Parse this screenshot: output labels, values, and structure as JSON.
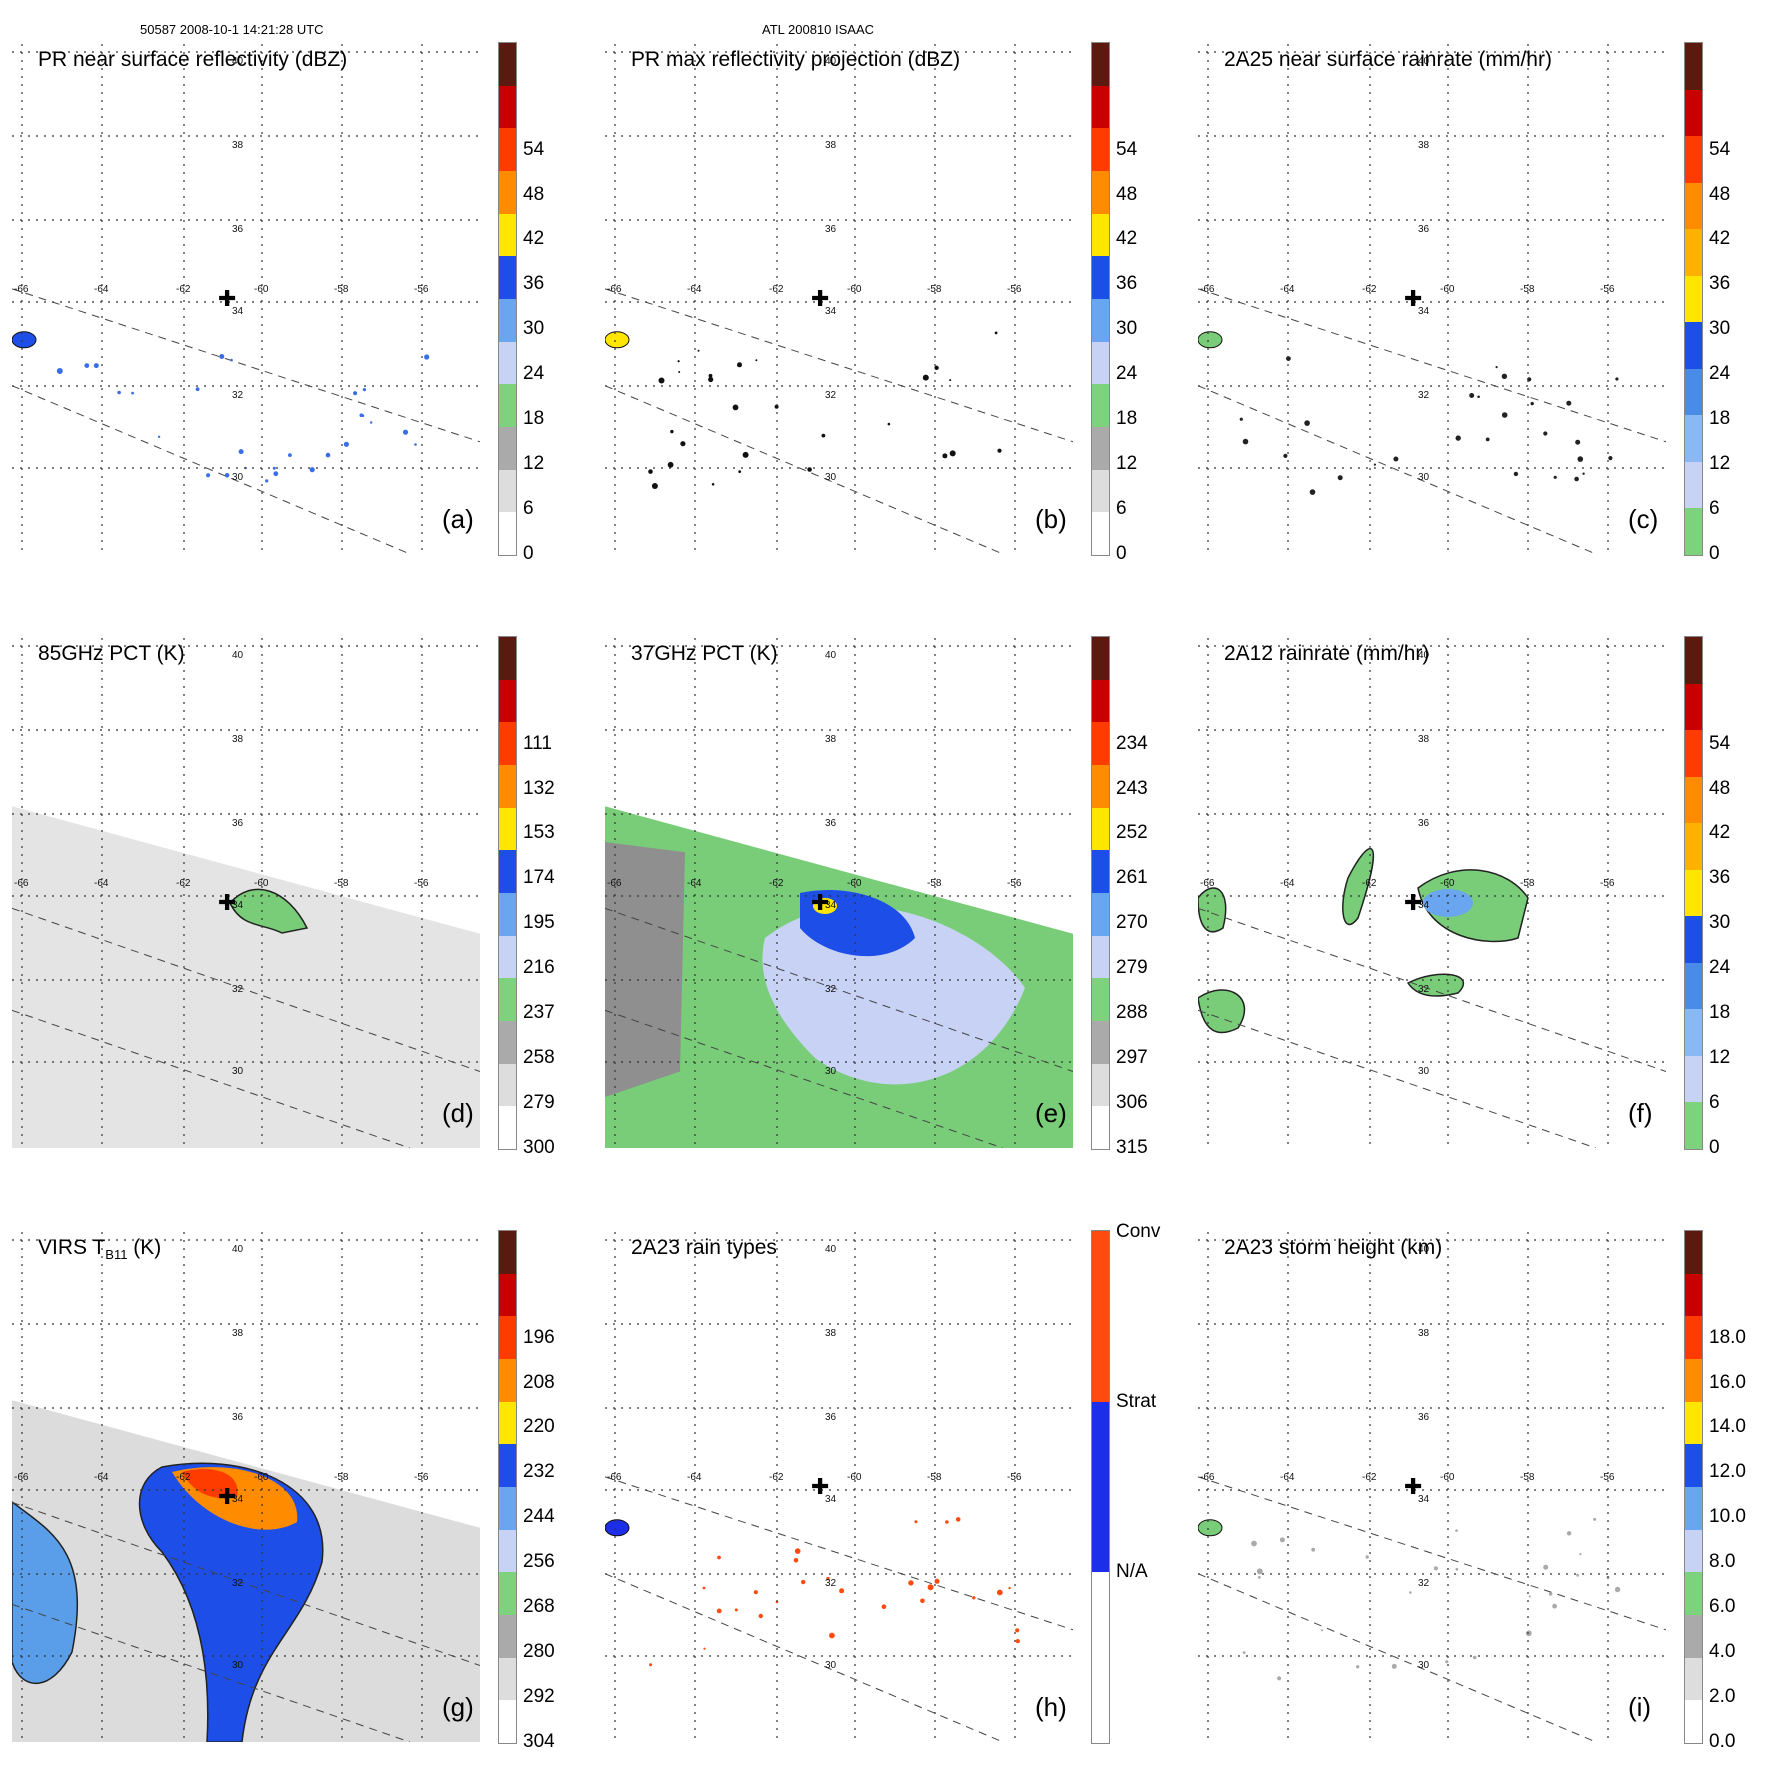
{
  "header": {
    "left": "50587 2008-10-1 14:21:28 UTC",
    "center": "ATL 200810 ISAAC"
  },
  "panels": [
    {
      "id": "a",
      "title": "PR near surface reflectivity (dBZ)",
      "label": "(a)",
      "ticks": [
        "0",
        "6",
        "12",
        "18",
        "24",
        "30",
        "36",
        "42",
        "48",
        "54"
      ],
      "colors": [
        "#ffffff",
        "#dddddd",
        "#aaaaaa",
        "#7ed27e",
        "#c8d2f5",
        "#6aa6ef",
        "#1d4ee8",
        "#ffe600",
        "#ff8c00",
        "#ff3c00",
        "#c80000",
        "#5a1a10"
      ],
      "lat_labels": [
        "40",
        "38",
        "36",
        "34",
        "32",
        "30"
      ],
      "lon_labels": [
        "-66",
        "-64",
        "-62",
        "-60",
        "-58",
        "-56"
      ],
      "swath": "narrow"
    },
    {
      "id": "b",
      "title": "PR max reflectivity projection (dBZ)",
      "label": "(b)",
      "ticks": [
        "0",
        "6",
        "12",
        "18",
        "24",
        "30",
        "36",
        "42",
        "48",
        "54"
      ],
      "colors": [
        "#ffffff",
        "#dddddd",
        "#aaaaaa",
        "#7ed27e",
        "#c8d2f5",
        "#6aa6ef",
        "#1d4ee8",
        "#ffe600",
        "#ff8c00",
        "#ff3c00",
        "#c80000",
        "#5a1a10"
      ],
      "lat_labels": [
        "40",
        "38",
        "36",
        "34",
        "32",
        "30"
      ],
      "lon_labels": [
        "-66",
        "-64",
        "-62",
        "-60",
        "-58",
        "-56"
      ],
      "swath": "narrow"
    },
    {
      "id": "c",
      "title": "2A25 near surface rainrate (mm/hr)",
      "label": "(c)",
      "ticks": [
        "0",
        "6",
        "12",
        "18",
        "24",
        "30",
        "36",
        "42",
        "48",
        "54"
      ],
      "colors": [
        "#7ed27e",
        "#c8d2f5",
        "#8ab8f2",
        "#4a8ae8",
        "#1d4ee8",
        "#ffe600",
        "#ffb000",
        "#ff8c00",
        "#ff3c00",
        "#c80000",
        "#5a1a10"
      ],
      "lat_labels": [
        "40",
        "38",
        "36",
        "34",
        "32",
        "30"
      ],
      "lon_labels": [
        "-66",
        "-64",
        "-62",
        "-60",
        "-58",
        "-56"
      ],
      "swath": "narrow"
    },
    {
      "id": "d",
      "title": "85GHz PCT (K)",
      "label": "(d)",
      "ticks": [
        "300",
        "279",
        "258",
        "237",
        "216",
        "195",
        "174",
        "153",
        "132",
        "111"
      ],
      "colors": [
        "#ffffff",
        "#dddddd",
        "#aaaaaa",
        "#7ed27e",
        "#c8d2f5",
        "#6aa6ef",
        "#1d4ee8",
        "#ffe600",
        "#ff8c00",
        "#ff3c00",
        "#c80000",
        "#5a1a10"
      ],
      "lat_labels": [
        "40",
        "38",
        "36",
        "34",
        "32",
        "30"
      ],
      "lon_labels": [
        "-66",
        "-64",
        "-62",
        "-60",
        "-58",
        "-56"
      ],
      "swath": "wide"
    },
    {
      "id": "e",
      "title": "37GHz PCT (K)",
      "label": "(e)",
      "ticks": [
        "315",
        "306",
        "297",
        "288",
        "279",
        "270",
        "261",
        "252",
        "243",
        "234"
      ],
      "colors": [
        "#ffffff",
        "#dddddd",
        "#aaaaaa",
        "#7ed27e",
        "#c8d2f5",
        "#6aa6ef",
        "#1d4ee8",
        "#ffe600",
        "#ff8c00",
        "#ff3c00",
        "#c80000",
        "#5a1a10"
      ],
      "lat_labels": [
        "40",
        "38",
        "36",
        "34",
        "32",
        "30"
      ],
      "lon_labels": [
        "-66",
        "-64",
        "-62",
        "-60",
        "-58",
        "-56"
      ],
      "swath": "wide"
    },
    {
      "id": "f",
      "title": "2A12 rainrate (mm/hr)",
      "label": "(f)",
      "ticks": [
        "0",
        "6",
        "12",
        "18",
        "24",
        "30",
        "36",
        "42",
        "48",
        "54"
      ],
      "colors": [
        "#7ed27e",
        "#c8d2f5",
        "#8ab8f2",
        "#4a8ae8",
        "#1d4ee8",
        "#ffe600",
        "#ffb000",
        "#ff8c00",
        "#ff3c00",
        "#c80000",
        "#5a1a10"
      ],
      "lat_labels": [
        "40",
        "38",
        "36",
        "34",
        "32",
        "30"
      ],
      "lon_labels": [
        "-66",
        "-64",
        "-62",
        "-60",
        "-58",
        "-56"
      ],
      "swath": "wide"
    },
    {
      "id": "g",
      "title": "VIRS T",
      "title_sub": "B11",
      "title_suffix": " (K)",
      "label": "(g)",
      "ticks": [
        "304",
        "292",
        "280",
        "268",
        "256",
        "244",
        "232",
        "220",
        "208",
        "196"
      ],
      "colors": [
        "#ffffff",
        "#dddddd",
        "#aaaaaa",
        "#7ed27e",
        "#c8d2f5",
        "#6aa6ef",
        "#1d4ee8",
        "#ffe600",
        "#ff8c00",
        "#ff3c00",
        "#c80000",
        "#5a1a10"
      ],
      "lat_labels": [
        "40",
        "38",
        "36",
        "34",
        "32",
        "30"
      ],
      "lon_labels": [
        "-66",
        "-64",
        "-62",
        "-60",
        "-58",
        "-56"
      ],
      "swath": "wide"
    },
    {
      "id": "h",
      "title": "2A23 rain types",
      "label": "(h)",
      "ticks": [
        "N/A",
        "Strat",
        "Conv"
      ],
      "colors": [
        "#ffffff",
        "#1d2ee8",
        "#ff4a10"
      ],
      "lat_labels": [
        "40",
        "38",
        "36",
        "34",
        "32",
        "30"
      ],
      "lon_labels": [
        "-66",
        "-64",
        "-62",
        "-60",
        "-58",
        "-56"
      ],
      "swath": "narrow"
    },
    {
      "id": "i",
      "title": "2A23 storm height (km)",
      "label": "(i)",
      "ticks": [
        "0.0",
        "2.0",
        "4.0",
        "6.0",
        "8.0",
        "10.0",
        "12.0",
        "14.0",
        "16.0",
        "18.0"
      ],
      "colors": [
        "#ffffff",
        "#dddddd",
        "#aaaaaa",
        "#7ed27e",
        "#c8d2f5",
        "#6aa6ef",
        "#1d4ee8",
        "#ffe600",
        "#ff8c00",
        "#ff3c00",
        "#c80000",
        "#5a1a10"
      ],
      "lat_labels": [
        "40",
        "38",
        "36",
        "34",
        "32",
        "30"
      ],
      "lon_labels": [
        "-66",
        "-64",
        "-62",
        "-60",
        "-58",
        "-56"
      ],
      "swath": "narrow"
    }
  ],
  "chart_data": [
    {
      "type": "heatmap",
      "title": "PR near surface reflectivity (dBZ)",
      "panel": "(a)",
      "colorbar": [
        0,
        6,
        12,
        18,
        24,
        30,
        36,
        42,
        48,
        54
      ],
      "lat_range": [
        29,
        41
      ],
      "lon_range": [
        -66.5,
        -54.5
      ],
      "storm_center": {
        "lat": 34.0,
        "lon": -60.2
      }
    },
    {
      "type": "heatmap",
      "title": "PR max reflectivity projection (dBZ)",
      "panel": "(b)",
      "colorbar": [
        0,
        6,
        12,
        18,
        24,
        30,
        36,
        42,
        48,
        54
      ],
      "lat_range": [
        29,
        41
      ],
      "lon_range": [
        -66.5,
        -54.5
      ],
      "storm_center": {
        "lat": 34.0,
        "lon": -60.2
      }
    },
    {
      "type": "heatmap",
      "title": "2A25 near surface rainrate (mm/hr)",
      "panel": "(c)",
      "colorbar": [
        0,
        6,
        12,
        18,
        24,
        30,
        36,
        42,
        48,
        54
      ],
      "lat_range": [
        29,
        41
      ],
      "lon_range": [
        -66.5,
        -54.5
      ],
      "storm_center": {
        "lat": 34.0,
        "lon": -60.2
      }
    },
    {
      "type": "heatmap",
      "title": "85GHz PCT (K)",
      "panel": "(d)",
      "colorbar": [
        300,
        279,
        258,
        237,
        216,
        195,
        174,
        153,
        132,
        111
      ],
      "lat_range": [
        29,
        41
      ],
      "lon_range": [
        -66.5,
        -54.5
      ],
      "storm_center": {
        "lat": 34.0,
        "lon": -60.2
      }
    },
    {
      "type": "heatmap",
      "title": "37GHz PCT (K)",
      "panel": "(e)",
      "colorbar": [
        315,
        306,
        297,
        288,
        279,
        270,
        261,
        252,
        243,
        234
      ],
      "lat_range": [
        29,
        41
      ],
      "lon_range": [
        -66.5,
        -54.5
      ],
      "storm_center": {
        "lat": 34.0,
        "lon": -60.2
      }
    },
    {
      "type": "heatmap",
      "title": "2A12 rainrate (mm/hr)",
      "panel": "(f)",
      "colorbar": [
        0,
        6,
        12,
        18,
        24,
        30,
        36,
        42,
        48,
        54
      ],
      "lat_range": [
        29,
        41
      ],
      "lon_range": [
        -66.5,
        -54.5
      ],
      "storm_center": {
        "lat": 34.0,
        "lon": -60.2
      }
    },
    {
      "type": "heatmap",
      "title": "VIRS TB11 (K)",
      "panel": "(g)",
      "colorbar": [
        304,
        292,
        280,
        268,
        256,
        244,
        232,
        220,
        208,
        196
      ],
      "lat_range": [
        29,
        41
      ],
      "lon_range": [
        -66.5,
        -54.5
      ],
      "storm_center": {
        "lat": 34.0,
        "lon": -60.2
      }
    },
    {
      "type": "heatmap",
      "title": "2A23 rain types",
      "panel": "(h)",
      "colorbar": [
        "N/A",
        "Strat",
        "Conv"
      ],
      "lat_range": [
        29,
        41
      ],
      "lon_range": [
        -66.5,
        -54.5
      ],
      "storm_center": {
        "lat": 34.0,
        "lon": -60.2
      }
    },
    {
      "type": "heatmap",
      "title": "2A23 storm height (km)",
      "panel": "(i)",
      "colorbar": [
        0.0,
        2.0,
        4.0,
        6.0,
        8.0,
        10.0,
        12.0,
        14.0,
        16.0,
        18.0
      ],
      "lat_range": [
        29,
        41
      ],
      "lon_range": [
        -66.5,
        -54.5
      ],
      "storm_center": {
        "lat": 34.0,
        "lon": -60.2
      }
    }
  ]
}
